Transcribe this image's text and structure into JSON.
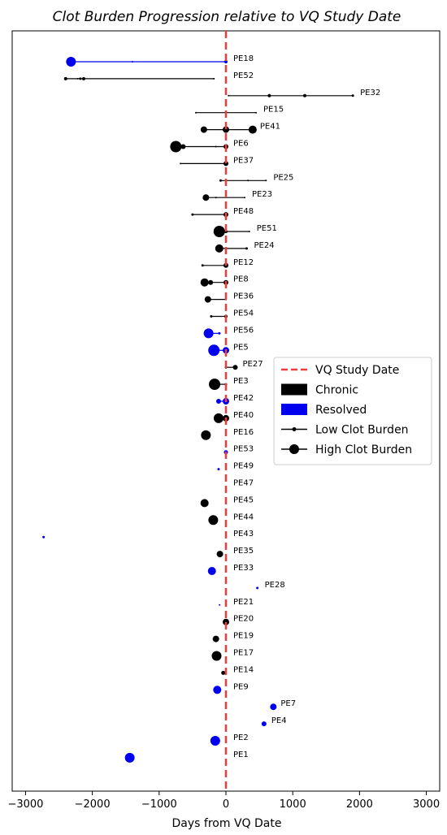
{
  "chart_data": {
    "type": "scatter",
    "title": "Clot Burden Progression relative to VQ Study Date",
    "xlabel": "Days from VQ Date",
    "ylabel": "",
    "xlim": [
      -3200,
      3200
    ],
    "xticks": [
      -3000,
      -2000,
      -1000,
      0,
      1000,
      2000,
      3000
    ],
    "xtick_labels": [
      "−3000",
      "−2000",
      "−1000",
      "0",
      "1000",
      "2000",
      "3000"
    ],
    "grid": false,
    "legend_position": "right",
    "reference_line": {
      "x": 0,
      "label": "VQ Study Date",
      "color": "#f03c3c"
    },
    "legend": [
      {
        "label": "VQ Study Date",
        "kind": "dashed-line",
        "color": "#f03c3c"
      },
      {
        "label": "Chronic",
        "kind": "patch",
        "color": "#000000"
      },
      {
        "label": "Resolved",
        "kind": "patch",
        "color": "#0000ee"
      },
      {
        "label": "Low Clot Burden",
        "kind": "line-small-marker",
        "color": "#000000"
      },
      {
        "label": "High Clot Burden",
        "kind": "line-large-marker",
        "color": "#000000"
      }
    ],
    "patients": [
      {
        "id": "PE18",
        "status": "Resolved",
        "range": [
          -2320,
          0
        ],
        "points": [
          {
            "x": -2320,
            "r": 6
          },
          {
            "x": -1400,
            "r": 1
          },
          {
            "x": 0,
            "r": 2
          }
        ]
      },
      {
        "id": "PE52",
        "status": "Chronic",
        "range": [
          -2400,
          -180
        ],
        "points": [
          {
            "x": -2400,
            "r": 2
          },
          {
            "x": -2220,
            "r": 1
          },
          {
            "x": -2180,
            "r": 1.5
          },
          {
            "x": -2130,
            "r": 2
          },
          {
            "x": -180,
            "r": 1
          }
        ]
      },
      {
        "id": "PE32",
        "status": "Chronic",
        "range": [
          40,
          1900
        ],
        "points": [
          {
            "x": 40,
            "r": 1
          },
          {
            "x": 650,
            "r": 2
          },
          {
            "x": 1180,
            "r": 2
          },
          {
            "x": 1900,
            "r": 1.5
          }
        ]
      },
      {
        "id": "PE15",
        "status": "Chronic",
        "range": [
          -450,
          450
        ],
        "points": [
          {
            "x": -450,
            "r": 1
          },
          {
            "x": 450,
            "r": 1
          }
        ]
      },
      {
        "id": "PE41",
        "status": "Chronic",
        "range": [
          -330,
          400
        ],
        "points": [
          {
            "x": -330,
            "r": 4
          },
          {
            "x": 0,
            "r": 4
          },
          {
            "x": 400,
            "r": 5
          }
        ]
      },
      {
        "id": "PE6",
        "status": "Chronic",
        "range": [
          -750,
          0
        ],
        "points": [
          {
            "x": -750,
            "r": 7
          },
          {
            "x": -640,
            "r": 3
          },
          {
            "x": -150,
            "r": 1
          },
          {
            "x": 0,
            "r": 3
          }
        ]
      },
      {
        "id": "PE37",
        "status": "Chronic",
        "range": [
          -680,
          0
        ],
        "points": [
          {
            "x": -680,
            "r": 1
          },
          {
            "x": 0,
            "r": 3
          }
        ]
      },
      {
        "id": "PE25",
        "status": "Chronic",
        "range": [
          -80,
          600
        ],
        "points": [
          {
            "x": -80,
            "r": 1.5
          },
          {
            "x": 330,
            "r": 1
          },
          {
            "x": 600,
            "r": 1
          }
        ]
      },
      {
        "id": "PE23",
        "status": "Chronic",
        "range": [
          -300,
          280
        ],
        "points": [
          {
            "x": -300,
            "r": 4
          },
          {
            "x": -150,
            "r": 1
          },
          {
            "x": 280,
            "r": 1
          }
        ]
      },
      {
        "id": "PE48",
        "status": "Chronic",
        "range": [
          -500,
          0
        ],
        "points": [
          {
            "x": -500,
            "r": 1.5
          },
          {
            "x": 0,
            "r": 3
          }
        ]
      },
      {
        "id": "PE51",
        "status": "Chronic",
        "range": [
          -100,
          350
        ],
        "points": [
          {
            "x": -100,
            "r": 7
          },
          {
            "x": 0,
            "r": 2
          },
          {
            "x": 350,
            "r": 1
          }
        ]
      },
      {
        "id": "PE24",
        "status": "Chronic",
        "range": [
          -100,
          310
        ],
        "points": [
          {
            "x": -100,
            "r": 5
          },
          {
            "x": 310,
            "r": 1.5
          }
        ]
      },
      {
        "id": "PE12",
        "status": "Chronic",
        "range": [
          -350,
          0
        ],
        "points": [
          {
            "x": -350,
            "r": 1.5
          },
          {
            "x": 0,
            "r": 3
          }
        ]
      },
      {
        "id": "PE8",
        "status": "Chronic",
        "range": [
          -320,
          0
        ],
        "points": [
          {
            "x": -320,
            "r": 5
          },
          {
            "x": -230,
            "r": 3
          },
          {
            "x": 0,
            "r": 3
          }
        ]
      },
      {
        "id": "PE36",
        "status": "Chronic",
        "range": [
          -270,
          0
        ],
        "points": [
          {
            "x": -270,
            "r": 4
          },
          {
            "x": 0,
            "r": 1
          }
        ]
      },
      {
        "id": "PE54",
        "status": "Chronic",
        "range": [
          -220,
          0
        ],
        "points": [
          {
            "x": -220,
            "r": 1.5
          },
          {
            "x": 0,
            "r": 2
          }
        ]
      },
      {
        "id": "PE56",
        "status": "Resolved",
        "range": [
          -260,
          -80
        ],
        "points": [
          {
            "x": -260,
            "r": 6
          },
          {
            "x": -100,
            "r": 1.5
          }
        ]
      },
      {
        "id": "PE5",
        "status": "Resolved",
        "range": [
          -180,
          0
        ],
        "points": [
          {
            "x": -180,
            "r": 7
          },
          {
            "x": 0,
            "r": 4
          }
        ]
      },
      {
        "id": "PE27",
        "status": "Chronic",
        "range": [
          0,
          140
        ],
        "points": [
          {
            "x": 0,
            "r": 1.5
          },
          {
            "x": 140,
            "r": 3
          }
        ]
      },
      {
        "id": "PE3",
        "status": "Chronic",
        "range": [
          -170,
          0
        ],
        "points": [
          {
            "x": -170,
            "r": 7
          },
          {
            "x": 0,
            "r": 1.5
          }
        ]
      },
      {
        "id": "PE42",
        "status": "Resolved",
        "range": [
          -110,
          0
        ],
        "points": [
          {
            "x": -110,
            "r": 3
          },
          {
            "x": 0,
            "r": 4
          }
        ]
      },
      {
        "id": "PE40",
        "status": "Chronic",
        "range": [
          -110,
          0
        ],
        "points": [
          {
            "x": -110,
            "r": 6
          },
          {
            "x": 0,
            "r": 4
          }
        ]
      },
      {
        "id": "PE16",
        "status": "Chronic",
        "range": [
          -300,
          -300
        ],
        "points": [
          {
            "x": -300,
            "r": 6
          }
        ]
      },
      {
        "id": "PE53",
        "status": "Resolved",
        "range": [
          0,
          0
        ],
        "points": [
          {
            "x": 0,
            "r": 2.5
          }
        ]
      },
      {
        "id": "PE49",
        "status": "Resolved",
        "range": [
          -110,
          -110
        ],
        "points": [
          {
            "x": -110,
            "r": 1.5
          }
        ]
      },
      {
        "id": "PE47",
        "status": "Resolved",
        "range": [
          0,
          0
        ],
        "points": []
      },
      {
        "id": "PE45",
        "status": "Chronic",
        "range": [
          -320,
          -320
        ],
        "points": [
          {
            "x": -320,
            "r": 5
          }
        ]
      },
      {
        "id": "PE44",
        "status": "Chronic",
        "range": [
          -190,
          -190
        ],
        "points": [
          {
            "x": -190,
            "r": 6
          }
        ]
      },
      {
        "id": "PE43",
        "status": "Resolved",
        "range": [
          -2730,
          -2730
        ],
        "points": [
          {
            "x": -2730,
            "r": 1.5
          }
        ]
      },
      {
        "id": "PE35",
        "status": "Chronic",
        "range": [
          -90,
          -90
        ],
        "points": [
          {
            "x": -90,
            "r": 4
          }
        ]
      },
      {
        "id": "PE33",
        "status": "Resolved",
        "range": [
          -210,
          -210
        ],
        "points": [
          {
            "x": -210,
            "r": 5
          }
        ]
      },
      {
        "id": "PE28",
        "status": "Resolved",
        "range": [
          470,
          470
        ],
        "points": [
          {
            "x": 470,
            "r": 1.5
          }
        ]
      },
      {
        "id": "PE21",
        "status": "Resolved",
        "range": [
          -95,
          -95
        ],
        "points": [
          {
            "x": -95,
            "r": 1
          }
        ]
      },
      {
        "id": "PE20",
        "status": "Chronic",
        "range": [
          0,
          0
        ],
        "points": [
          {
            "x": 0,
            "r": 4
          }
        ]
      },
      {
        "id": "PE19",
        "status": "Chronic",
        "range": [
          -150,
          -150
        ],
        "points": [
          {
            "x": -150,
            "r": 4
          }
        ]
      },
      {
        "id": "PE17",
        "status": "Chronic",
        "range": [
          -140,
          -140
        ],
        "points": [
          {
            "x": -140,
            "r": 6
          }
        ]
      },
      {
        "id": "PE14",
        "status": "Chronic",
        "range": [
          -40,
          -40
        ],
        "points": [
          {
            "x": -40,
            "r": 2.5
          }
        ]
      },
      {
        "id": "PE9",
        "status": "Resolved",
        "range": [
          -130,
          -130
        ],
        "points": [
          {
            "x": -130,
            "r": 5
          }
        ]
      },
      {
        "id": "PE7",
        "status": "Resolved",
        "range": [
          710,
          710
        ],
        "points": [
          {
            "x": 710,
            "r": 4
          }
        ]
      },
      {
        "id": "PE4",
        "status": "Resolved",
        "range": [
          570,
          570
        ],
        "points": [
          {
            "x": 570,
            "r": 3
          }
        ]
      },
      {
        "id": "PE2",
        "status": "Resolved",
        "range": [
          -160,
          -160
        ],
        "points": [
          {
            "x": -160,
            "r": 6
          }
        ]
      },
      {
        "id": "PE1",
        "status": "Resolved",
        "range": [
          -1440,
          -1440
        ],
        "points": [
          {
            "x": -1440,
            "r": 6
          }
        ]
      }
    ]
  }
}
